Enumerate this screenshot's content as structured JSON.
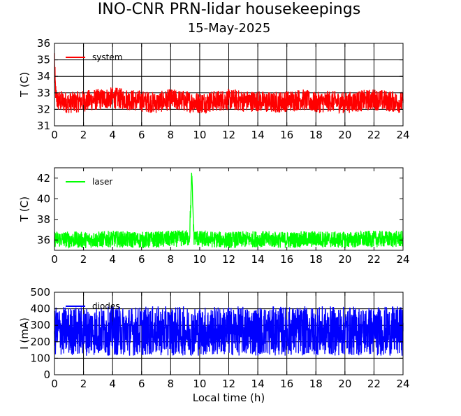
{
  "figure": {
    "title": "INO-CNR PRN-lidar housekeepings",
    "subtitle": "15-May-2025"
  },
  "chart_data": [
    {
      "type": "line",
      "ylabel": "T (C)",
      "xlabel": "",
      "xlim": [
        0,
        24
      ],
      "ylim": [
        31,
        36
      ],
      "xticks": [
        0,
        2,
        4,
        6,
        8,
        10,
        12,
        14,
        16,
        18,
        20,
        22,
        24
      ],
      "yticks": [
        31,
        32,
        33,
        34,
        35,
        36
      ],
      "grid": true,
      "legend_position": "top-left",
      "series": [
        {
          "name": "system",
          "color": "#ff0000",
          "x": [
            0,
            0.05,
            0.1,
            0.2,
            0.4,
            1,
            2,
            3,
            4,
            5,
            6,
            7,
            8,
            9,
            10,
            11,
            12,
            13,
            14,
            15,
            16,
            17,
            18,
            19,
            20,
            21,
            22,
            23,
            24
          ],
          "y": [
            35.2,
            33.6,
            32.8,
            32.5,
            32.5,
            32.4,
            32.5,
            32.6,
            32.7,
            32.6,
            32.5,
            32.4,
            32.6,
            32.5,
            32.4,
            32.5,
            32.6,
            32.5,
            32.5,
            32.4,
            32.5,
            32.6,
            32.4,
            32.5,
            32.4,
            32.5,
            32.6,
            32.5,
            32.4
          ],
          "noise_band": 0.65
        }
      ]
    },
    {
      "type": "line",
      "ylabel": "T (C)",
      "xlabel": "",
      "xlim": [
        0,
        24
      ],
      "ylim": [
        35,
        43
      ],
      "xticks": [
        0,
        2,
        4,
        6,
        8,
        10,
        12,
        14,
        16,
        18,
        20,
        22,
        24
      ],
      "yticks": [
        36,
        38,
        40,
        42
      ],
      "grid": false,
      "legend_position": "top-left",
      "series": [
        {
          "name": "laser",
          "color": "#00ff00",
          "x": [
            0,
            2,
            4,
            6,
            8,
            9.3,
            9.45,
            9.6,
            10,
            12,
            14,
            16,
            18,
            20,
            22,
            24
          ],
          "y": [
            36.1,
            36.0,
            36.1,
            36.0,
            36.1,
            36.2,
            42.3,
            36.3,
            36.1,
            36.0,
            36.1,
            36.0,
            36.1,
            36.0,
            36.1,
            36.1
          ],
          "noise_band": 0.8
        }
      ]
    },
    {
      "type": "line",
      "ylabel": "I (mA)",
      "xlabel": "Local time (h)",
      "xlim": [
        0,
        24
      ],
      "ylim": [
        0,
        500
      ],
      "xticks": [
        0,
        2,
        4,
        6,
        8,
        10,
        12,
        14,
        16,
        18,
        20,
        22,
        24
      ],
      "yticks": [
        0,
        100,
        200,
        300,
        400,
        500
      ],
      "grid": true,
      "legend_position": "top-left",
      "series": [
        {
          "name": "diodes",
          "color": "#0000ff",
          "x": [
            0,
            24
          ],
          "y": [
            265,
            265
          ],
          "noise_band": 150
        }
      ]
    }
  ]
}
